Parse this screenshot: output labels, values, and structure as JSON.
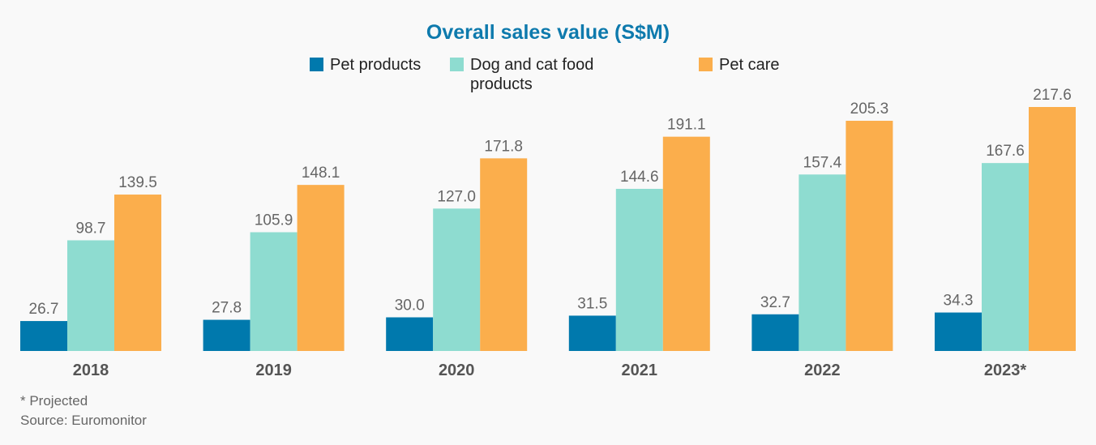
{
  "chart_data": {
    "type": "bar",
    "title": "Overall sales value (S$M)",
    "categories": [
      "2018",
      "2019",
      "2020",
      "2021",
      "2022",
      "2023*"
    ],
    "series": [
      {
        "name": "Pet products",
        "color": "#0079ad",
        "values": [
          26.7,
          27.8,
          30.0,
          31.5,
          32.7,
          34.3
        ]
      },
      {
        "name": "Dog and cat food products",
        "color": "#8edcd0",
        "values": [
          98.7,
          105.9,
          127.0,
          144.6,
          157.4,
          167.6
        ]
      },
      {
        "name": "Pet care",
        "color": "#fbae4c",
        "values": [
          139.5,
          148.1,
          171.8,
          191.1,
          205.3,
          217.6
        ]
      }
    ],
    "xlabel": "",
    "ylabel": "",
    "ylim": [
      0,
      217.6
    ],
    "grid": false,
    "legend": "top-center",
    "notes": [
      "* Projected",
      "Source: Euromonitor"
    ]
  }
}
